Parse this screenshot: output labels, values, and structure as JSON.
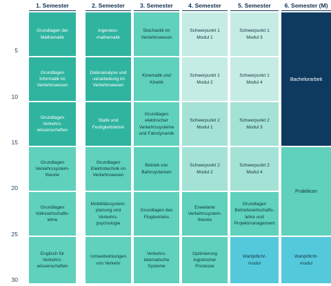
{
  "columns": [
    "1. Semester",
    "2. Semester",
    "3. Semester",
    "4. Semester",
    "5. Semester",
    "6. Semester (M)"
  ],
  "y_ticks": [
    "5",
    "10",
    "15",
    "20",
    "25",
    "30"
  ],
  "cells": {
    "s1": [
      "Grundlagen der\nMathematik",
      "Grundlagen\nInformatik im\nVerkehrswesen",
      "Grundlagen\nVerkehrs-\nwissenschaften",
      "Grundlagen\nVerkehrssystem-\ntheorie",
      "Grundlagen\nVolkswirtschafts-\nlehre",
      "Englisch für\nVerkehrs-\nwissenschaften"
    ],
    "s2": [
      "Ingenieur-\nmathematik",
      "Datenanalyse und\n-verarbeitung im\nVerkehrswesen",
      "Statik und\nFestigkeitslehre",
      "Grundlagen\nElektrotechnik im\nVerkehrswesen",
      "Mobilitätssystem-\nplanung und\nVerkehrs-\npsychologie",
      "Umweltwirkungen\nvon Verkehr"
    ],
    "s3": [
      "Stochastik im\nVerkehrswesen",
      "Kinematik und\nKinetik",
      "Grundlagen\nelektrischer\nVerkehrssysteme\nund Fahrdynamik",
      "Betrieb von\nBahnsystemen",
      "Grundlagen des\nFlugbetriebs",
      "Verkehrs-\ntelematische\nSysteme"
    ],
    "s4": [
      "Schwerpunkt 1\nModul 1",
      "Schwerpunkt 1\nModul 2",
      "Schwerpunkt 2\nModul 1",
      "Schwerpunkt 2\nModul 2",
      "Erweiterte\nVerkehrssystem-\ntheorie",
      "Optimierung\nlogistischer\nProzesse"
    ],
    "s5": [
      "Schwerpunkt 1\nModul 3",
      "Schwerpunkt 1\nModul 4",
      "Schwerpunkt 2\nModul 3",
      "Schwerpunkt 2\nModul 4",
      "Grundlagen\nBetriebswirtschafts-\nlehre und\nProjektmanagement",
      "Wahlpflicht-\nmodul"
    ],
    "s6": [
      "Bachelorarbeit",
      "Praktikum",
      "Wahlpflicht-\nmodul"
    ]
  },
  "colors": {
    "dark_teal": "#2fb4a0",
    "teal": "#5fd1bc",
    "light_teal": "#c4ece5",
    "mid_teal": "#a4e2d6",
    "navy": "#0e3a5f",
    "aqua": "#55c9dc",
    "header_text": "#0f2f4f"
  }
}
